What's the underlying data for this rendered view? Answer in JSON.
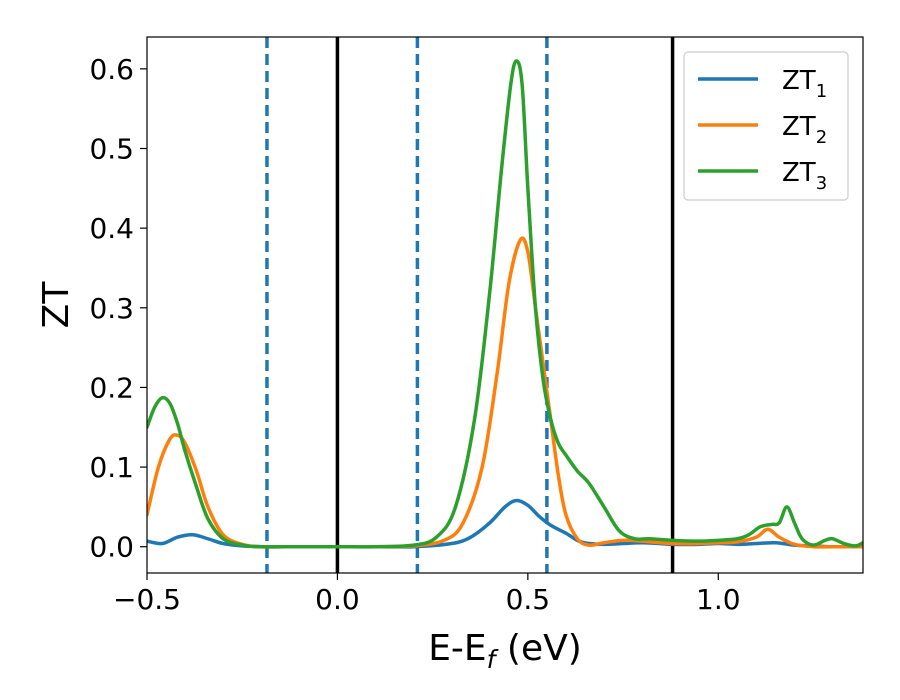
{
  "chart_data": {
    "type": "line",
    "xlabel": "E-E",
    "xlabel_sub": "f",
    "xlabel_unit": "(eV)",
    "ylabel": "ZT",
    "xlim": [
      -0.5,
      1.38
    ],
    "ylim": [
      -0.033,
      0.64
    ],
    "xticks": [
      -0.5,
      0.0,
      0.5,
      1.0
    ],
    "xtick_labels": [
      "−0.5",
      "0.0",
      "0.5",
      "1.0"
    ],
    "yticks": [
      0.0,
      0.1,
      0.2,
      0.3,
      0.4,
      0.5,
      0.6
    ],
    "ytick_labels": [
      "0.0",
      "0.1",
      "0.2",
      "0.3",
      "0.4",
      "0.5",
      "0.6"
    ],
    "grid": false,
    "legend_position": "top-right",
    "vlines_solid": [
      0.0,
      0.88
    ],
    "vlines_dashed": [
      -0.185,
      0.21,
      0.55
    ],
    "vline_solid_color": "#000000",
    "vline_dashed_color": "#1f77b4",
    "series": [
      {
        "name": "ZT",
        "sub": "1",
        "color": "#1f77b4",
        "x": [
          -0.5,
          -0.46,
          -0.42,
          -0.38,
          -0.34,
          -0.3,
          -0.25,
          -0.2,
          -0.1,
          0.0,
          0.1,
          0.2,
          0.3,
          0.35,
          0.4,
          0.44,
          0.47,
          0.5,
          0.53,
          0.56,
          0.6,
          0.64,
          0.7,
          0.8,
          0.88,
          0.95,
          1.0,
          1.05,
          1.1,
          1.15,
          1.2,
          1.25,
          1.3,
          1.38
        ],
        "y": [
          0.007,
          0.004,
          0.012,
          0.015,
          0.01,
          0.004,
          0.001,
          0.0,
          0.0,
          0.0,
          0.0,
          0.0,
          0.004,
          0.012,
          0.03,
          0.05,
          0.058,
          0.052,
          0.038,
          0.027,
          0.017,
          0.006,
          0.003,
          0.005,
          0.003,
          0.003,
          0.004,
          0.003,
          0.004,
          0.005,
          0.002,
          0.001,
          0.0,
          0.0
        ]
      },
      {
        "name": "ZT",
        "sub": "2",
        "color": "#ff7f0e",
        "x": [
          -0.5,
          -0.47,
          -0.44,
          -0.42,
          -0.4,
          -0.37,
          -0.34,
          -0.3,
          -0.25,
          -0.2,
          -0.1,
          0.0,
          0.1,
          0.2,
          0.28,
          0.33,
          0.38,
          0.42,
          0.45,
          0.48,
          0.5,
          0.52,
          0.54,
          0.56,
          0.58,
          0.6,
          0.63,
          0.66,
          0.7,
          0.75,
          0.8,
          0.88,
          0.95,
          1.0,
          1.05,
          1.1,
          1.13,
          1.16,
          1.2,
          1.25,
          1.3,
          1.38
        ],
        "y": [
          0.04,
          0.1,
          0.135,
          0.14,
          0.13,
          0.095,
          0.05,
          0.015,
          0.003,
          0.0,
          0.0,
          0.0,
          0.0,
          0.001,
          0.008,
          0.03,
          0.1,
          0.22,
          0.33,
          0.385,
          0.37,
          0.3,
          0.23,
          0.16,
          0.09,
          0.04,
          0.01,
          0.002,
          0.005,
          0.008,
          0.007,
          0.004,
          0.004,
          0.005,
          0.006,
          0.012,
          0.022,
          0.012,
          0.003,
          0.0,
          0.0,
          0.0
        ]
      },
      {
        "name": "ZT",
        "sub": "3",
        "color": "#2ca02c",
        "x": [
          -0.5,
          -0.48,
          -0.46,
          -0.44,
          -0.42,
          -0.4,
          -0.37,
          -0.34,
          -0.3,
          -0.25,
          -0.2,
          -0.1,
          0.0,
          0.1,
          0.2,
          0.26,
          0.31,
          0.36,
          0.4,
          0.43,
          0.455,
          0.47,
          0.485,
          0.5,
          0.52,
          0.54,
          0.56,
          0.58,
          0.6,
          0.63,
          0.66,
          0.7,
          0.74,
          0.78,
          0.82,
          0.88,
          0.95,
          1.0,
          1.05,
          1.08,
          1.11,
          1.14,
          1.16,
          1.18,
          1.2,
          1.22,
          1.25,
          1.28,
          1.3,
          1.33,
          1.36,
          1.38
        ],
        "y": [
          0.15,
          0.175,
          0.187,
          0.18,
          0.155,
          0.12,
          0.075,
          0.035,
          0.01,
          0.002,
          0.0,
          0.0,
          0.0,
          0.0,
          0.002,
          0.012,
          0.05,
          0.16,
          0.32,
          0.47,
          0.58,
          0.61,
          0.58,
          0.45,
          0.3,
          0.21,
          0.16,
          0.13,
          0.115,
          0.095,
          0.08,
          0.05,
          0.02,
          0.01,
          0.01,
          0.008,
          0.007,
          0.008,
          0.01,
          0.015,
          0.025,
          0.028,
          0.03,
          0.05,
          0.03,
          0.01,
          0.002,
          0.008,
          0.01,
          0.004,
          0.001,
          0.005
        ]
      }
    ]
  }
}
